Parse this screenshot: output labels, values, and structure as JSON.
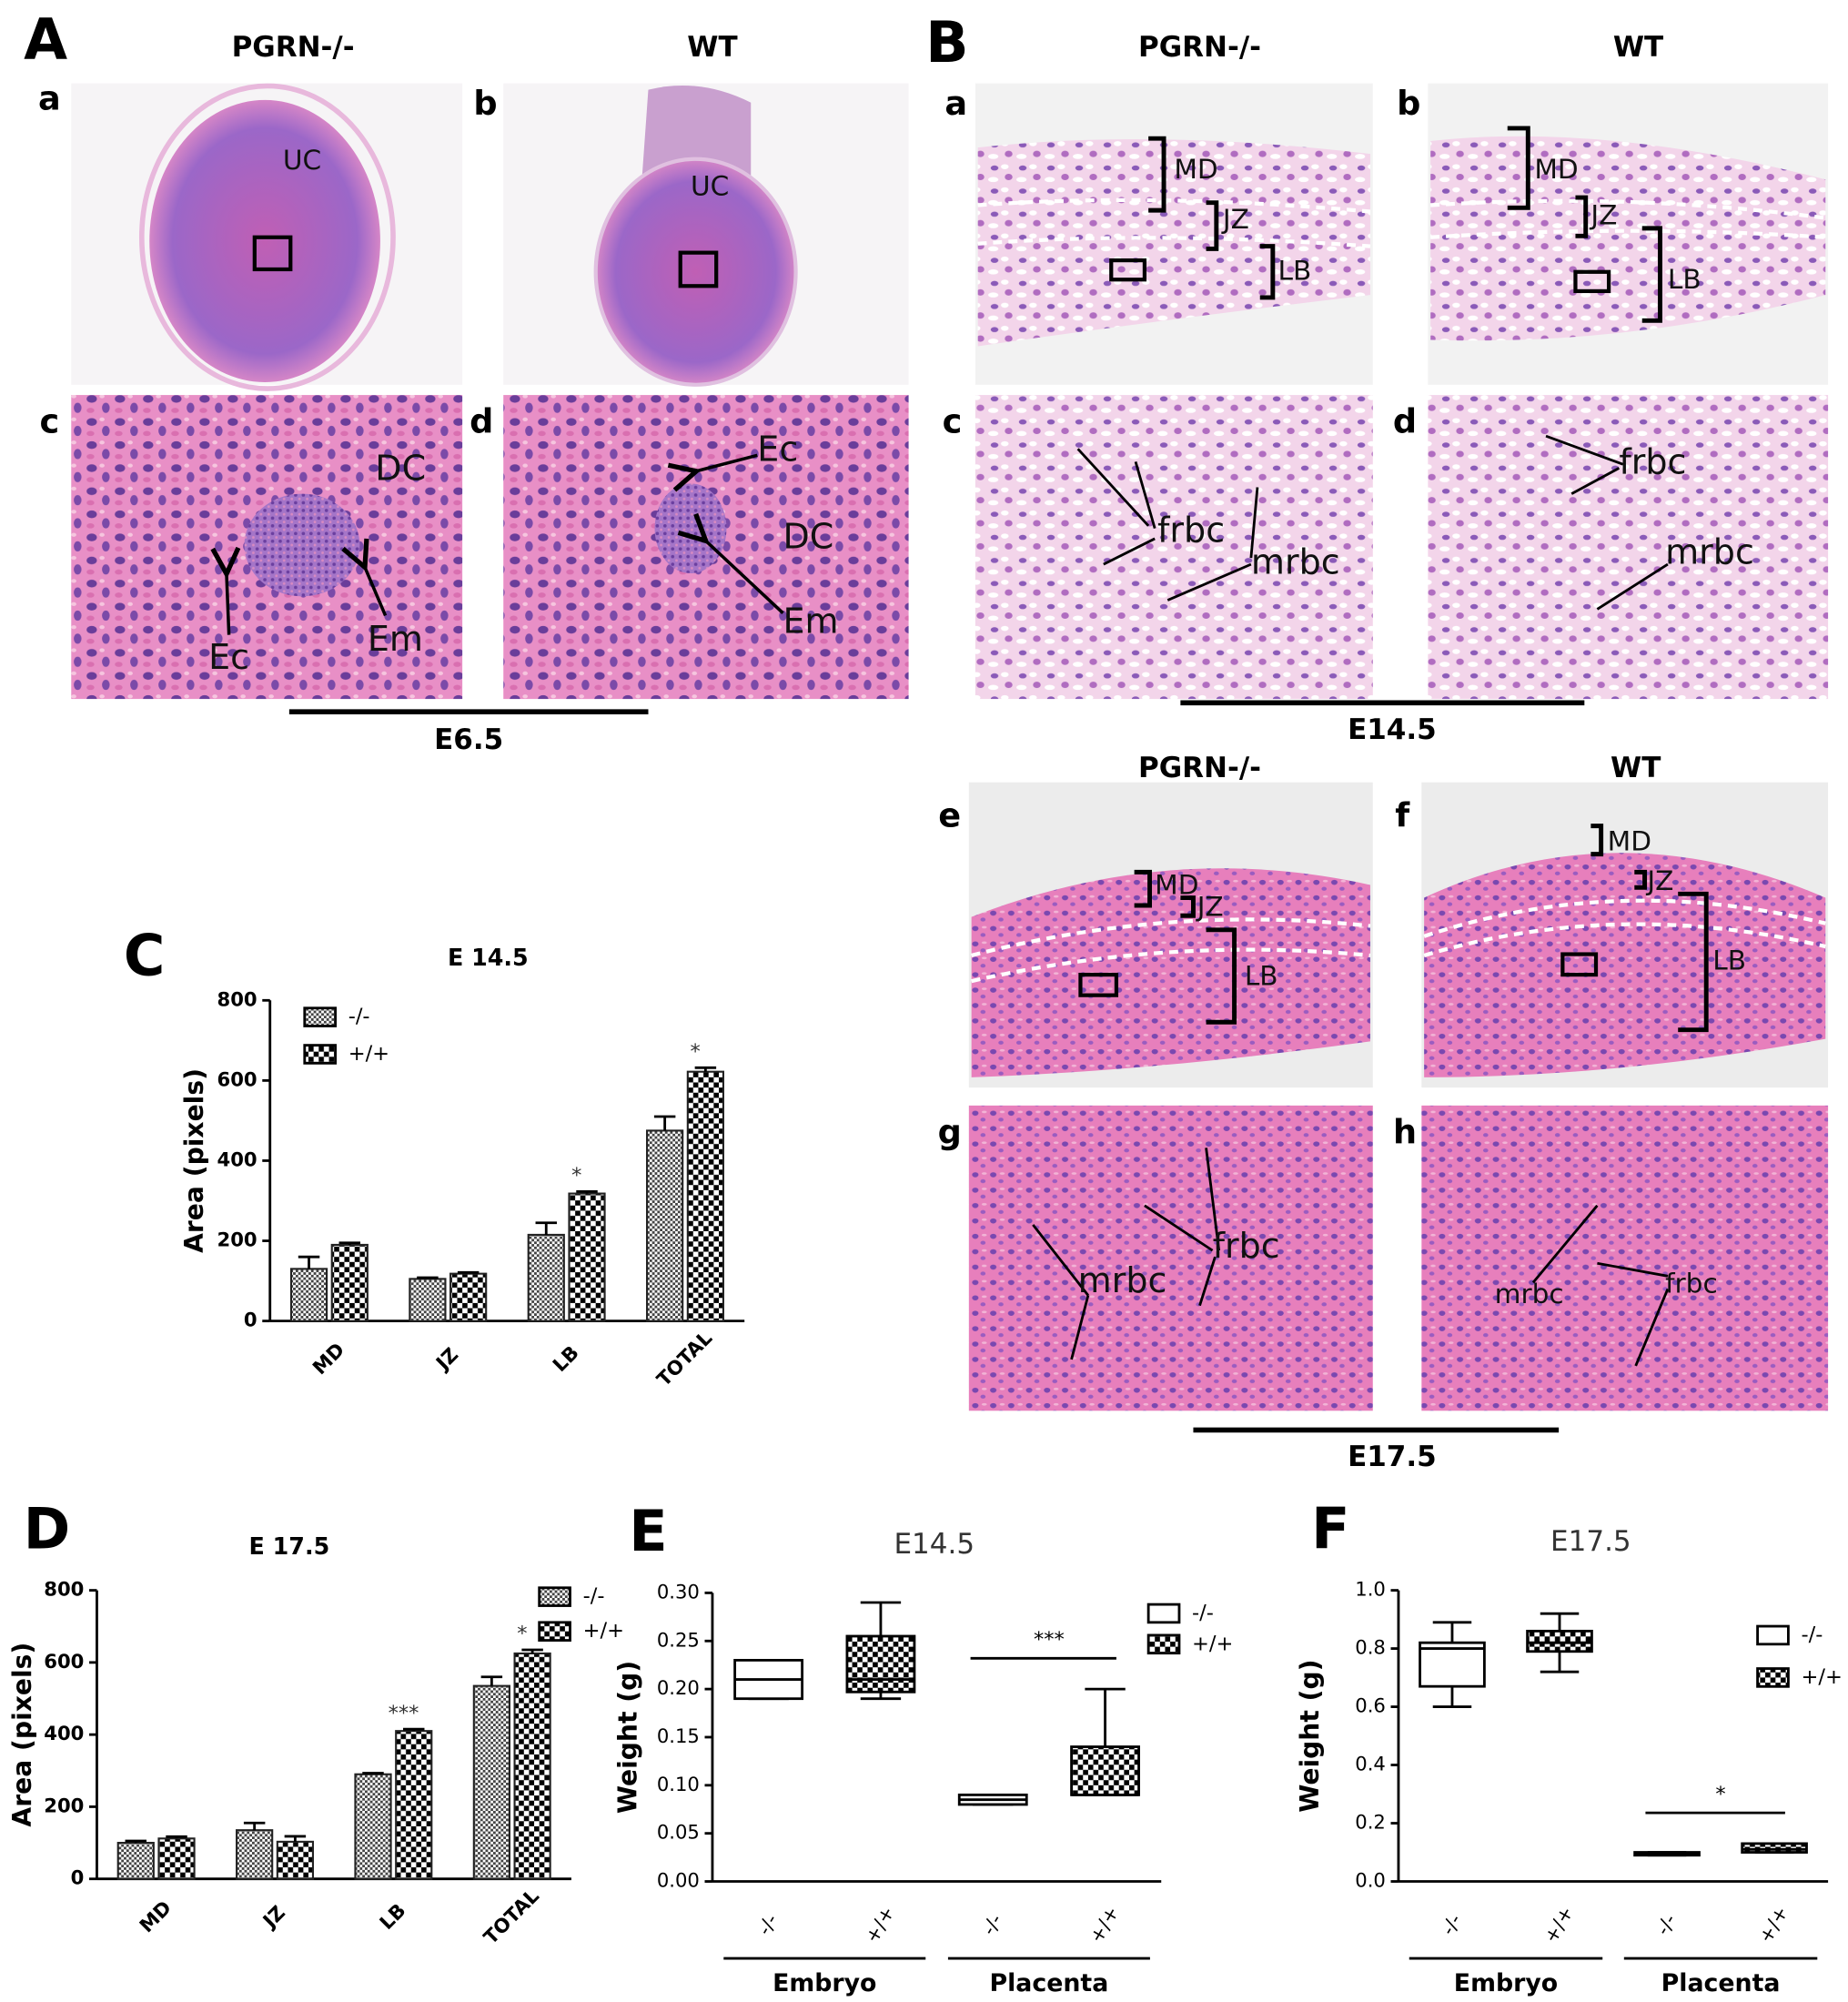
{
  "figure": {
    "A": {
      "letter": "A",
      "headers": [
        "PGRN-/-",
        "WT"
      ],
      "stage": "E6.5",
      "images": [
        {
          "label": "a",
          "notes": [
            "UC"
          ]
        },
        {
          "label": "b",
          "notes": [
            "UC"
          ]
        },
        {
          "label": "c",
          "notes": [
            "DC",
            "Ec",
            "Em"
          ]
        },
        {
          "label": "d",
          "notes": [
            "Ec",
            "DC",
            "Em"
          ]
        }
      ]
    },
    "B": {
      "letter": "B",
      "headers": [
        "PGRN-/-",
        "WT"
      ],
      "stage": "E14.5",
      "images": [
        {
          "label": "a",
          "notes": [
            "MD",
            "JZ",
            "LB"
          ]
        },
        {
          "label": "b",
          "notes": [
            "MD",
            "JZ",
            "LB"
          ]
        },
        {
          "label": "c",
          "notes": [
            "frbc",
            "mrbc"
          ]
        },
        {
          "label": "d",
          "notes": [
            "frbc",
            "mrbc"
          ]
        }
      ]
    },
    "B2": {
      "headers": [
        "PGRN-/-",
        "WT"
      ],
      "stage": "E17.5",
      "images": [
        {
          "label": "e",
          "notes": [
            "MD",
            "JZ",
            "LB"
          ]
        },
        {
          "label": "f",
          "notes": [
            "MD",
            "JZ",
            "LB"
          ]
        },
        {
          "label": "g",
          "notes": [
            "frbc",
            "mrbc"
          ]
        },
        {
          "label": "h",
          "notes": [
            "mrbc",
            "frbc"
          ]
        }
      ]
    }
  },
  "chart_data": [
    {
      "type": "bar",
      "panel": "C",
      "title": "E 14.5",
      "ylabel": "Area (pixels)",
      "categories": [
        "MD",
        "JZ",
        "LB",
        "TOTAL"
      ],
      "series": [
        {
          "name": "-/-",
          "color": "#444444",
          "pattern": "fine",
          "values": [
            130,
            105,
            215,
            475
          ],
          "errors": [
            30,
            3,
            30,
            35
          ]
        },
        {
          "name": "+/+",
          "color": "#000000",
          "pattern": "coarse",
          "values": [
            190,
            118,
            318,
            622
          ],
          "errors": [
            5,
            3,
            5,
            10
          ]
        }
      ],
      "significance": [
        null,
        null,
        "*",
        "*"
      ],
      "ylim": [
        0,
        800
      ],
      "yticks": [
        0,
        200,
        400,
        600,
        800
      ]
    },
    {
      "type": "bar",
      "panel": "D",
      "title": "E 17.5",
      "ylabel": "Area (pixels)",
      "categories": [
        "MD",
        "JZ",
        "LB",
        "TOTAL"
      ],
      "series": [
        {
          "name": "-/-",
          "color": "#444444",
          "pattern": "fine",
          "values": [
            100,
            135,
            290,
            535
          ],
          "errors": [
            5,
            20,
            3,
            25
          ]
        },
        {
          "name": "+/+",
          "color": "#000000",
          "pattern": "coarse",
          "values": [
            112,
            103,
            410,
            625
          ],
          "errors": [
            5,
            15,
            5,
            10
          ]
        }
      ],
      "significance": [
        null,
        null,
        "***",
        "*"
      ],
      "ylim": [
        0,
        800
      ],
      "yticks": [
        0,
        200,
        400,
        600,
        800
      ]
    },
    {
      "type": "box",
      "panel": "E",
      "title": "E14.5",
      "ylabel": "Weight (g)",
      "categories": [
        "Embryo",
        "Placenta"
      ],
      "series": [
        {
          "name": "-/-",
          "color": "#000000",
          "pattern": "none",
          "boxes": [
            {
              "min": 0.19,
              "q1": 0.19,
              "median": 0.21,
              "q3": 0.23,
              "max": 0.23
            },
            {
              "min": 0.08,
              "q1": 0.08,
              "median": 0.085,
              "q3": 0.09,
              "max": 0.09
            }
          ]
        },
        {
          "name": "+/+",
          "color": "#000000",
          "pattern": "coarse",
          "boxes": [
            {
              "min": 0.19,
              "q1": 0.197,
              "median": 0.21,
              "q3": 0.255,
              "max": 0.29
            },
            {
              "min": 0.09,
              "q1": 0.09,
              "median": 0.09,
              "q3": 0.14,
              "max": 0.2
            }
          ]
        }
      ],
      "significance": [
        null,
        "***"
      ],
      "ylim": [
        0,
        0.3
      ],
      "yticks": [
        {
          "value": 0,
          "label": "0.00"
        },
        0.05,
        {
          "value": 0.1,
          "label": "0.10"
        },
        0.15,
        {
          "value": 0.2,
          "label": "0.20"
        },
        0.25,
        {
          "value": 0.3,
          "label": "0.30"
        }
      ]
    },
    {
      "type": "box",
      "panel": "F",
      "title": "E17.5",
      "ylabel": "Weight (g)",
      "categories": [
        "Embryo",
        "Placenta"
      ],
      "series": [
        {
          "name": "-/-",
          "color": "#000000",
          "pattern": "none",
          "boxes": [
            {
              "min": 0.6,
              "q1": 0.67,
              "median": 0.8,
              "q3": 0.82,
              "max": 0.89
            },
            {
              "min": 0.09,
              "q1": 0.09,
              "median": 0.095,
              "q3": 0.1,
              "max": 0.1
            }
          ]
        },
        {
          "name": "+/+",
          "color": "#000000",
          "pattern": "coarse",
          "boxes": [
            {
              "min": 0.72,
              "q1": 0.79,
              "median": 0.82,
              "q3": 0.86,
              "max": 0.92
            },
            {
              "min": 0.1,
              "q1": 0.1,
              "median": 0.11,
              "q3": 0.13,
              "max": 0.13
            }
          ]
        }
      ],
      "significance": [
        null,
        "*"
      ],
      "ylim": [
        0,
        1
      ],
      "yticks": [
        {
          "value": 0,
          "label": "0.0"
        },
        0.2,
        0.4,
        0.6,
        0.8,
        {
          "value": 1,
          "label": "1.0"
        }
      ]
    }
  ]
}
